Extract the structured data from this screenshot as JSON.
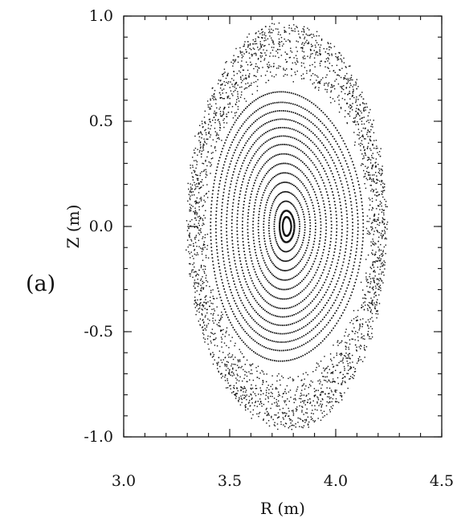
{
  "panel_label": "(a)",
  "chart_data": {
    "type": "scatter",
    "title": "",
    "xlabel": "R (m)",
    "ylabel": "Z (m)",
    "xlim": [
      3.0,
      4.5
    ],
    "ylim": [
      -1.0,
      1.0
    ],
    "xticks": [
      3.0,
      3.5,
      4.0,
      4.5
    ],
    "xtick_labels": [
      "3.0",
      "3.5",
      "4.0",
      "4.5"
    ],
    "yticks": [
      1.0,
      0.5,
      0.0,
      -0.5,
      -1.0
    ],
    "ytick_labels": [
      "1.0",
      "0.5",
      "0.0",
      "-0.5",
      "-1.0"
    ],
    "grid": false,
    "legend": "none",
    "marker_color": "#111111",
    "magnetic_axis": [
      3.77,
      0.0
    ],
    "nested_surfaces": {
      "description_of_data": "closed nested flux surfaces around magnetic axis, [R_half_width, Z_half_height] in m",
      "half_widths": [
        0.02,
        0.035,
        0.06,
        0.085,
        0.11,
        0.135,
        0.16,
        0.185,
        0.21,
        0.235,
        0.26,
        0.285,
        0.31,
        0.335,
        0.36
      ],
      "half_heights": [
        0.045,
        0.075,
        0.12,
        0.165,
        0.21,
        0.255,
        0.3,
        0.345,
        0.39,
        0.43,
        0.47,
        0.51,
        0.55,
        0.59,
        0.64
      ]
    },
    "stochastic_layer": {
      "inner_half_width": 0.38,
      "outer_half_width": 0.47,
      "inner_half_height": 0.7,
      "outer_half_height": 0.97
    }
  }
}
